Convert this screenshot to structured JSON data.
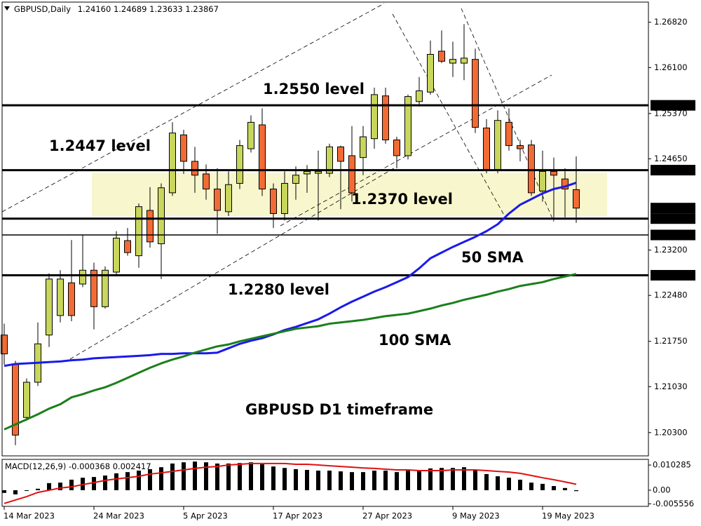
{
  "chart_data": [
    {
      "type": "candlestick",
      "title": "GBPUSD,Daily",
      "title_values": [
        "1.24160",
        "1.24689",
        "1.23633",
        "1.23867"
      ],
      "categories": [
        "14 Mar 2023",
        null,
        null,
        null,
        null,
        null,
        null,
        null,
        "24 Mar 2023",
        null,
        null,
        null,
        null,
        null,
        null,
        null,
        "5 Apr 2023",
        null,
        null,
        null,
        null,
        null,
        null,
        null,
        "17 Apr 2023",
        null,
        null,
        null,
        null,
        null,
        null,
        null,
        "27 Apr 2023",
        null,
        null,
        null,
        null,
        null,
        null,
        null,
        "9 May 2023",
        null,
        null,
        null,
        null,
        null,
        null,
        null,
        "19 May 2023",
        null,
        null,
        null
      ],
      "open": [
        1.2185,
        1.2138,
        1.2054,
        1.211,
        1.2185,
        1.2216,
        1.2268,
        1.2266,
        1.2288,
        1.223,
        1.2285,
        1.2335,
        1.2311,
        1.2383,
        1.233,
        1.2411,
        1.2503,
        1.2461,
        1.2441,
        1.2417,
        1.2381,
        1.2426,
        1.2481,
        1.2519,
        1.2417,
        1.2378,
        1.2426,
        1.2441,
        1.2442,
        1.2442,
        1.2484,
        1.247,
        1.2467,
        1.2497,
        1.2565,
        1.2495,
        1.247,
        1.2556,
        1.2571,
        1.2636,
        1.2617,
        1.2617,
        1.2623,
        1.2514,
        1.2448,
        1.2523,
        1.2486,
        1.2487,
        1.2414,
        1.2445,
        1.2433,
        1.2416
      ],
      "high": [
        1.2203,
        1.2144,
        1.2116,
        1.2205,
        1.2283,
        1.2288,
        1.2336,
        1.2344,
        1.23,
        1.2294,
        1.235,
        1.2355,
        1.2394,
        1.242,
        1.2426,
        1.2523,
        1.2511,
        1.2484,
        1.2456,
        1.245,
        1.2445,
        1.2495,
        1.2534,
        1.2545,
        1.2426,
        1.2445,
        1.2453,
        1.2455,
        1.2478,
        1.2489,
        1.2486,
        1.2517,
        1.2517,
        1.2578,
        1.2578,
        1.25,
        1.2567,
        1.2595,
        1.2653,
        1.2669,
        1.2651,
        1.2679,
        1.264,
        1.2528,
        1.2542,
        1.2545,
        1.2495,
        1.2495,
        1.2478,
        1.2467,
        1.245,
        1.24689
      ],
      "low": [
        1.2138,
        1.201,
        1.2049,
        1.2104,
        1.2166,
        1.2205,
        1.2207,
        1.2261,
        1.2194,
        1.2227,
        1.2281,
        1.2311,
        1.2292,
        1.2324,
        1.2274,
        1.2406,
        1.2441,
        1.2411,
        1.24,
        1.2346,
        1.2374,
        1.2417,
        1.2475,
        1.2406,
        1.2355,
        1.2367,
        1.24,
        1.2411,
        1.2367,
        1.2436,
        1.2385,
        1.2397,
        1.2439,
        1.2481,
        1.2489,
        1.245,
        1.2464,
        1.2548,
        1.2567,
        1.2617,
        1.2595,
        1.259,
        1.2506,
        1.2442,
        1.2442,
        1.2478,
        1.2461,
        1.2406,
        1.2397,
        1.2367,
        1.2372,
        1.23633
      ],
      "close": [
        1.2155,
        1.2026,
        1.211,
        1.2171,
        1.2274,
        1.2274,
        1.2216,
        1.2288,
        1.223,
        1.2288,
        1.2339,
        1.2316,
        1.2389,
        1.2333,
        1.2419,
        1.2506,
        1.2461,
        1.2439,
        1.2417,
        1.2383,
        1.2424,
        1.2486,
        1.2523,
        1.2417,
        1.2378,
        1.2426,
        1.2439,
        1.2445,
        1.2445,
        1.2484,
        1.2461,
        1.2411,
        1.25,
        1.2567,
        1.2495,
        1.247,
        1.2564,
        1.2573,
        1.2631,
        1.262,
        1.2623,
        1.2625,
        1.2515,
        1.2448,
        1.2526,
        1.2486,
        1.2481,
        1.2411,
        1.2445,
        1.2439,
        1.2417,
        1.23867
      ],
      "up_color": "#c8d65c",
      "down_color": "#f26b35",
      "series": [
        {
          "name": "50 SMA",
          "color": "#1a1aeb",
          "values": [
            1.2136,
            1.2139,
            1.214,
            1.2141,
            1.2142,
            1.2143,
            1.2145,
            1.2146,
            1.2148,
            1.2149,
            1.215,
            1.2151,
            1.2152,
            1.2153,
            1.2155,
            1.2155,
            1.2156,
            1.2156,
            1.2156,
            1.2157,
            1.2164,
            1.2171,
            1.2176,
            1.218,
            1.2186,
            1.2193,
            1.2198,
            1.2204,
            1.221,
            1.2219,
            1.2229,
            1.2238,
            1.2246,
            1.2254,
            1.2261,
            1.2269,
            1.2277,
            1.2291,
            1.2307,
            1.2316,
            1.2325,
            1.2333,
            1.2341,
            1.235,
            1.2361,
            1.2378,
            1.2392,
            1.2401,
            1.241,
            1.2417,
            1.2421,
            1.2427
          ]
        },
        {
          "name": "100 SMA",
          "color": "#1b7f1b",
          "values": [
            1.2035,
            1.2043,
            1.2051,
            1.2059,
            1.2068,
            1.2075,
            1.2086,
            1.2091,
            1.2097,
            1.2102,
            1.2109,
            1.2117,
            1.2125,
            1.2133,
            1.214,
            1.2146,
            1.2151,
            1.2157,
            1.2162,
            1.2167,
            1.217,
            1.2175,
            1.2179,
            1.2183,
            1.2187,
            1.2191,
            1.2195,
            1.2197,
            1.2199,
            1.2203,
            1.2205,
            1.2207,
            1.2209,
            1.2212,
            1.2215,
            1.2217,
            1.2219,
            1.2223,
            1.2227,
            1.2232,
            1.2236,
            1.2241,
            1.2245,
            1.2249,
            1.2254,
            1.2258,
            1.2263,
            1.2266,
            1.2269,
            1.2274,
            1.2278,
            1.2282
          ]
        }
      ],
      "ylim": [
        1.1993,
        1.2714
      ],
      "yticks": [
        {
          "value": 1.2682,
          "label": "1.26820"
        },
        {
          "value": 1.261,
          "label": "1.26100"
        },
        {
          "value": 1.2537,
          "label": "1.25370"
        },
        {
          "value": 1.2465,
          "label": "1.24650"
        },
        {
          "value": 1.232,
          "label": "1.23200"
        },
        {
          "value": 1.2248,
          "label": "1.22480"
        },
        {
          "value": 1.2175,
          "label": "1.21750"
        },
        {
          "value": 1.2103,
          "label": "1.21030"
        },
        {
          "value": 1.203,
          "label": "1.20300"
        }
      ],
      "levels": [
        {
          "value": 1.255,
          "label": "1.25500",
          "weight": 3
        },
        {
          "value": 1.2447,
          "label": "1.24470",
          "weight": 3
        },
        {
          "value": 1.237,
          "label": "1.23700",
          "weight": 3
        },
        {
          "value": 1.2344,
          "label": "1.23440",
          "weight": 1.5
        },
        {
          "value": 1.228,
          "label": "1.22800",
          "weight": 3
        }
      ],
      "price_marker": {
        "value": 1.23867,
        "label": "1.23867"
      },
      "zone": [
        1.2374,
        1.2443
      ],
      "zone_color": "#f8f6cc",
      "annotations": [
        {
          "text": "1.2550 level",
          "color": "#000000"
        },
        {
          "text": "1.2447 level",
          "color": "#000000"
        },
        {
          "text": "1.2370 level",
          "color": "#000000"
        },
        {
          "text": "1.2280 level",
          "color": "#000000"
        },
        {
          "text": "GBPUSD D1 timeframe",
          "color": "#000000"
        }
      ]
    },
    {
      "type": "macd",
      "title": "MACD(12,26,9)",
      "series": [
        {
          "color": "#000000",
          "values": [
            -0.0011,
            -0.0017,
            -0.0003,
            0.0006,
            0.0029,
            0.0031,
            0.0043,
            0.0051,
            0.0054,
            0.006,
            0.0069,
            0.0074,
            0.008,
            0.0086,
            0.0094,
            0.0109,
            0.0114,
            0.0117,
            0.0114,
            0.0109,
            0.0109,
            0.0111,
            0.0114,
            0.0106,
            0.0097,
            0.0091,
            0.0086,
            0.0083,
            0.008,
            0.008,
            0.0077,
            0.0074,
            0.0074,
            0.008,
            0.008,
            0.0074,
            0.008,
            0.0083,
            0.0089,
            0.0091,
            0.0091,
            0.0094,
            0.0083,
            0.0066,
            0.0057,
            0.0051,
            0.0043,
            0.0031,
            0.0026,
            0.0017,
            0.0009,
            -0.000368
          ]
        },
        {
          "color": "#e01010",
          "values": [
            -0.0054,
            -0.004,
            -0.0026,
            -0.0009,
            0.0,
            0.0009,
            0.0014,
            0.0023,
            0.0031,
            0.004,
            0.0046,
            0.0051,
            0.0057,
            0.0066,
            0.0071,
            0.0077,
            0.0083,
            0.0089,
            0.0094,
            0.0097,
            0.0103,
            0.0106,
            0.0109,
            0.0109,
            0.0109,
            0.0109,
            0.0106,
            0.0106,
            0.0103,
            0.01,
            0.0097,
            0.0094,
            0.0091,
            0.0089,
            0.0086,
            0.0083,
            0.0083,
            0.008,
            0.008,
            0.008,
            0.0083,
            0.0083,
            0.0083,
            0.008,
            0.0077,
            0.0074,
            0.0069,
            0.006,
            0.0051,
            0.0043,
            0.0034,
            0.002417
          ]
        }
      ],
      "ylim": [
        -0.0066,
        0.0126
      ],
      "yticks": [
        0.010285,
        {
          "value": 0,
          "label": "0.00"
        },
        -0.005556
      ]
    }
  ]
}
